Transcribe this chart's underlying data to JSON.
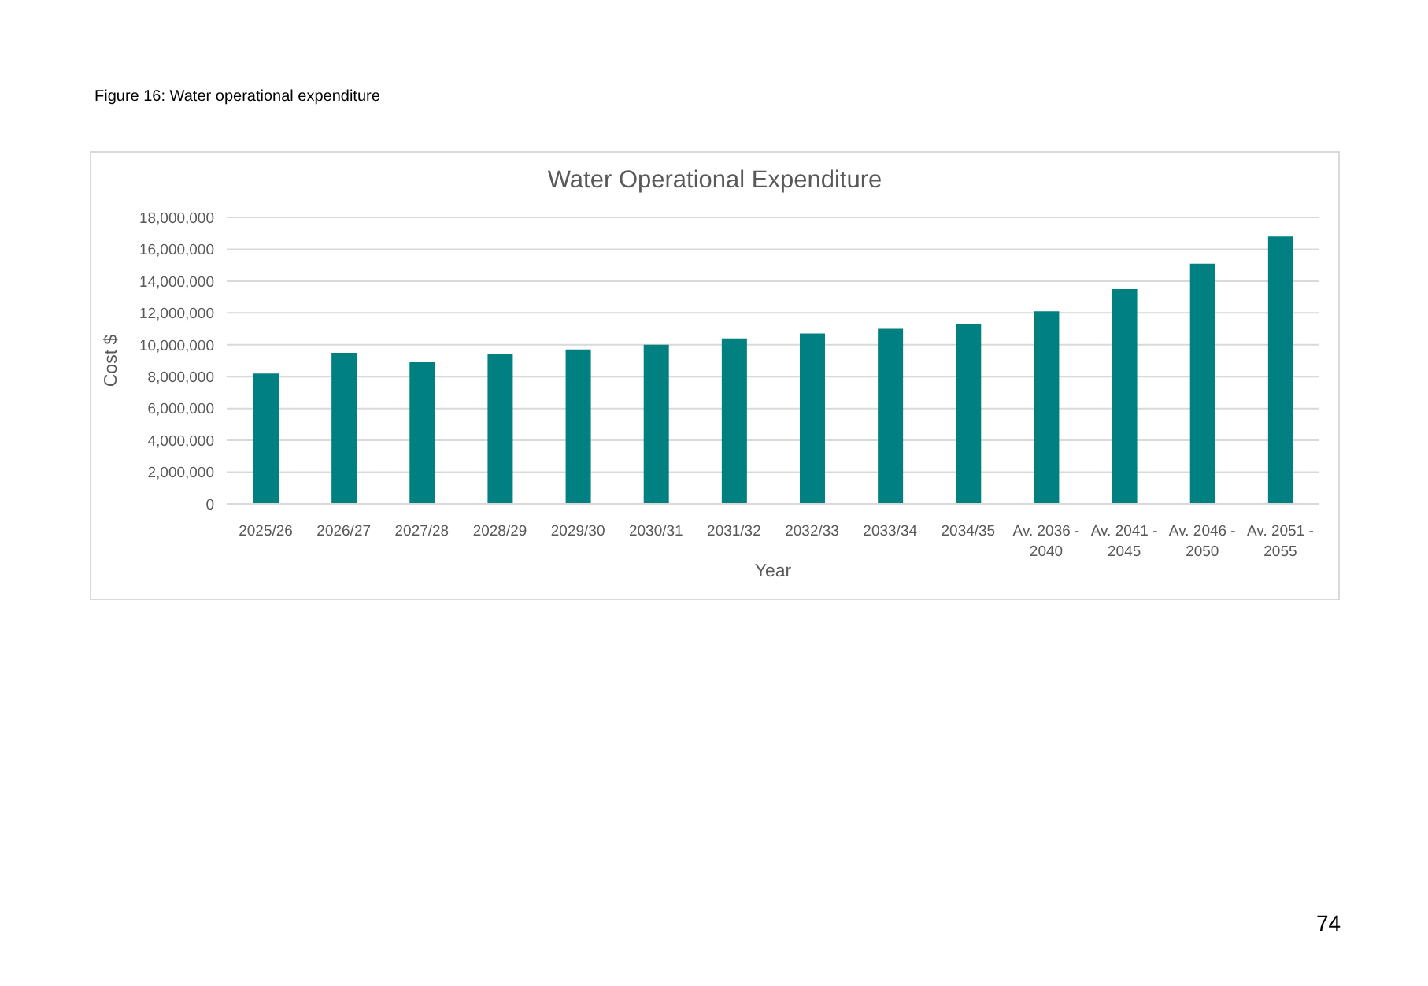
{
  "chart_data": {
    "type": "bar",
    "title": "Water Operational Expenditure",
    "xlabel": "Year",
    "ylabel": "Cost $",
    "categories": [
      "2025/26",
      "2026/27",
      "2027/28",
      "2028/29",
      "2029/30",
      "2030/31",
      "2031/32",
      "2032/33",
      "2033/34",
      "2034/35",
      "Av. 2036 - 2040",
      "Av. 2041 - 2045",
      "Av. 2046 - 2050",
      "Av. 2051 - 2055"
    ],
    "values": [
      8200000,
      9500000,
      8900000,
      9400000,
      9700000,
      10000000,
      10400000,
      10700000,
      11000000,
      11300000,
      12100000,
      13500000,
      15100000,
      16800000
    ],
    "color": "#008080",
    "ylim": [
      0,
      18000000
    ],
    "yticks": [
      0,
      {
        "value": 2000000,
        "label": "2,000,000"
      },
      {
        "value": 4000000,
        "label": "4,000,000"
      },
      {
        "value": 6000000,
        "label": "6,000,000"
      },
      {
        "value": 8000000,
        "label": "8,000,000"
      },
      {
        "value": 10000000,
        "label": "10,000,000"
      },
      {
        "value": 12000000,
        "label": "12,000,000"
      },
      {
        "value": 14000000,
        "label": "14,000,000"
      },
      {
        "value": 16000000,
        "label": "16,000,000"
      },
      {
        "value": 18000000,
        "label": "18,000,000"
      }
    ],
    "grid": "y",
    "annotations": [
      "Figure 16: Water operational expenditure",
      "74"
    ]
  }
}
